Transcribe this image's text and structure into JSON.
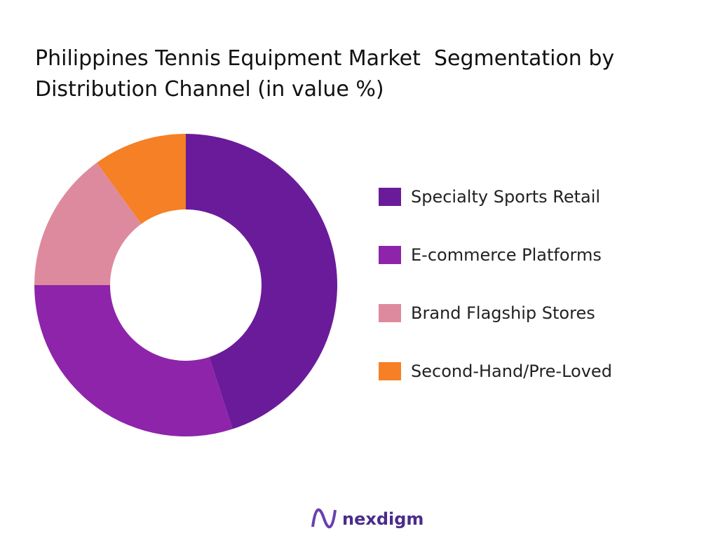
{
  "chart_data": {
    "type": "donut",
    "title": "Philippines Tennis Equipment Market  Segmentation by Distribution Channel (in value %)",
    "categories": [
      "Specialty Sports Retail",
      "E-commerce Platforms",
      "Brand Flagship Stores",
      "Second-Hand/Pre-Loved"
    ],
    "values": [
      45,
      30,
      15,
      10
    ],
    "colors": [
      "#6a1b9a",
      "#8e24aa",
      "#de8a9e",
      "#f58025"
    ],
    "legend": "right"
  },
  "logo": "nexdigm"
}
